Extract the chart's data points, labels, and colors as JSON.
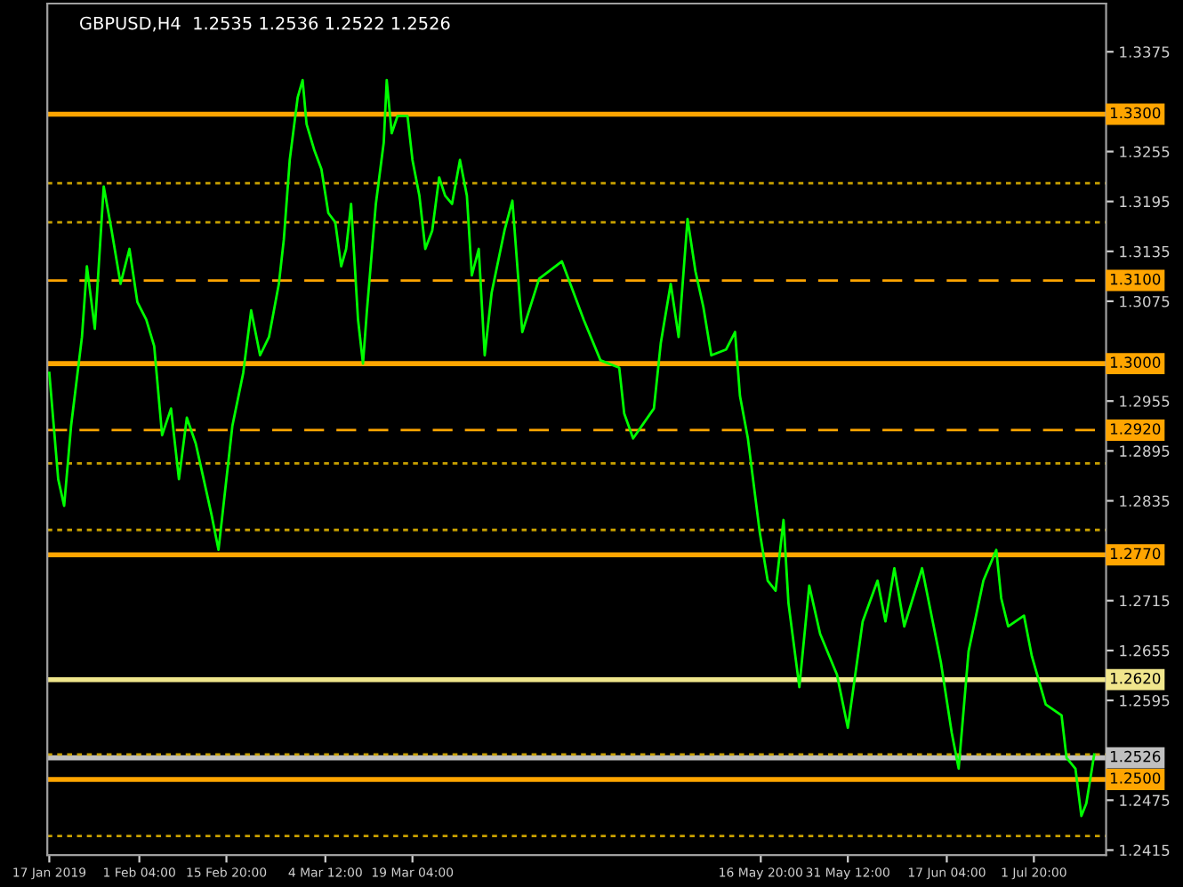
{
  "chart_data": {
    "type": "line",
    "title": "GBPUSD,H4  1.2535 1.2536 1.2522 1.2526",
    "x": [
      "2019-01-17T00:00",
      "2019-01-18T12:00",
      "2019-01-19T12:00",
      "2019-01-20T16:00",
      "2019-01-22T12:00",
      "2019-01-23T08:00",
      "2019-01-24T16:00",
      "2019-01-26T04:00",
      "2019-01-27T12:00",
      "2019-01-29T00:00",
      "2019-01-30T12:00",
      "2019-01-31T20:00",
      "2019-02-02T08:00",
      "2019-02-03T16:00",
      "2019-02-05T00:00",
      "2019-02-06T12:00",
      "2019-02-07T20:00",
      "2019-02-09T04:00",
      "2019-02-10T16:00",
      "2019-02-12T00:00",
      "2019-02-13T08:00",
      "2019-02-14T12:00",
      "2019-02-15T12:00",
      "2019-02-16T20:00",
      "2019-02-18T16:00",
      "2019-02-20T00:00",
      "2019-02-21T12:00",
      "2019-02-23T00:00",
      "2019-02-24T16:00",
      "2019-02-25T12:00",
      "2019-02-26T12:00",
      "2019-02-27T20:00",
      "2019-02-28T16:00",
      "2019-03-01T08:00",
      "2019-03-02T16:00",
      "2019-03-03T20:00",
      "2019-03-05T00:00",
      "2019-03-06T04:00",
      "2019-03-07T04:00",
      "2019-03-08T00:00",
      "2019-03-08T20:00",
      "2019-03-10T00:00",
      "2019-03-10T20:00",
      "2019-03-11T12:00",
      "2019-03-13T00:00",
      "2019-03-14T08:00",
      "2019-03-14T20:00",
      "2019-03-15T16:00",
      "2019-03-16T16:00",
      "2019-03-18T08:00",
      "2019-03-19T04:00",
      "2019-03-20T08:00",
      "2019-03-21T08:00",
      "2019-03-22T12:00",
      "2019-03-23T16:00",
      "2019-03-24T16:00",
      "2019-03-25T20:00",
      "2019-03-27T04:00",
      "2019-03-28T08:00",
      "2019-03-29T04:00",
      "2019-03-30T08:00",
      "2019-03-31T08:00",
      "2019-04-01T12:00",
      "2019-04-03T16:00",
      "2019-04-05T00:00",
      "2019-04-06T16:00",
      "2019-04-09T12:00",
      "2019-04-13T08:00",
      "2019-04-17T00:00",
      "2019-04-19T20:00",
      "2019-04-23T00:00",
      "2019-04-23T20:00",
      "2019-04-25T08:00",
      "2019-04-28T20:00",
      "2019-04-30T00:00",
      "2019-05-01T16:00",
      "2019-05-03T00:00",
      "2019-05-04T12:00",
      "2019-05-05T20:00",
      "2019-05-07T04:00",
      "2019-05-08T12:00",
      "2019-05-11T00:00",
      "2019-05-12T12:00",
      "2019-05-13T08:00",
      "2019-05-14T16:00",
      "2019-05-16T16:00",
      "2019-05-18T00:00",
      "2019-05-19T08:00",
      "2019-05-20T16:00",
      "2019-05-21T12:00",
      "2019-05-23T08:00",
      "2019-05-25T00:00",
      "2019-05-26T20:00",
      "2019-05-29T16:00",
      "2019-05-31T12:00",
      "2019-06-03T00:00",
      "2019-06-05T12:00",
      "2019-06-06T20:00",
      "2019-06-08T08:00",
      "2019-06-10T00:00",
      "2019-06-13T00:00",
      "2019-06-16T04:00",
      "2019-06-18T00:00",
      "2019-06-19T04:00",
      "2019-06-20T20:00",
      "2019-06-23T08:00",
      "2019-06-25T12:00",
      "2019-06-26T08:00",
      "2019-06-27T12:00",
      "2019-06-30T04:00",
      "2019-07-01T12:00",
      "2019-07-03T20:00",
      "2019-07-06T12:00",
      "2019-07-07T08:00",
      "2019-07-08T20:00",
      "2019-07-09T20:00",
      "2019-07-10T16:00",
      "2019-07-12T00:00"
    ],
    "series": [
      {
        "color": "#00ff00",
        "values": [
          1.2989,
          1.2861,
          1.2829,
          1.2925,
          1.3032,
          1.3117,
          1.3042,
          1.3213,
          1.316,
          1.3096,
          1.3138,
          1.3074,
          1.3053,
          1.3021,
          1.2914,
          1.2946,
          1.2861,
          1.2935,
          1.2904,
          1.2861,
          1.2818,
          1.2776,
          1.284,
          1.2925,
          1.2989,
          1.3064,
          1.301,
          1.3032,
          1.3096,
          1.3149,
          1.3245,
          1.332,
          1.3341,
          1.3288,
          1.3256,
          1.3234,
          1.3181,
          1.317,
          1.3117,
          1.3138,
          1.3192,
          1.3053,
          1.3,
          1.3064,
          1.3192,
          1.3266,
          1.3341,
          1.3277,
          1.3298,
          1.3298,
          1.3245,
          1.3202,
          1.3138,
          1.316,
          1.3224,
          1.3202,
          1.3192,
          1.3245,
          1.3202,
          1.3106,
          1.3138,
          1.301,
          1.3085,
          1.316,
          1.3196,
          1.3038,
          1.3102,
          1.3123,
          1.3053,
          1.3004,
          1.2995,
          1.294,
          1.291,
          1.2946,
          1.3025,
          1.3096,
          1.3032,
          1.3174,
          1.3111,
          1.3068,
          1.301,
          1.3017,
          1.3038,
          1.2961,
          1.291,
          1.2797,
          1.2739,
          1.2727,
          1.2812,
          1.2712,
          1.2611,
          1.2733,
          1.2675,
          1.2626,
          1.2562,
          1.269,
          1.2739,
          1.269,
          1.2754,
          1.2684,
          1.2754,
          1.2641,
          1.2556,
          1.2513,
          1.2654,
          1.2739,
          1.2776,
          1.2718,
          1.2684,
          1.2697,
          1.2648,
          1.259,
          1.2577,
          1.2526,
          1.2513,
          1.2456,
          1.2471,
          1.253
        ]
      }
    ],
    "xlim": [
      "2019-01-16T16:00",
      "2019-07-14T00:00"
    ],
    "xticks": [
      {
        "value": "2019-01-17T00:00",
        "label": "17 Jan 2019"
      },
      {
        "value": "2019-02-01T04:00",
        "label": "1 Feb 04:00"
      },
      {
        "value": "2019-02-15T20:00",
        "label": "15 Feb 20:00"
      },
      {
        "value": "2019-03-04T12:00",
        "label": "4 Mar 12:00"
      },
      {
        "value": "2019-03-19T04:00",
        "label": "19 Mar 04:00"
      },
      {
        "value": "2019-05-16T20:00",
        "label": "16 May 20:00"
      },
      {
        "value": "2019-05-31T12:00",
        "label": "31 May 12:00"
      },
      {
        "value": "2019-06-17T04:00",
        "label": "17 Jun 04:00"
      },
      {
        "value": "2019-07-01T20:00",
        "label": "1 Jul 20:00"
      }
    ],
    "ylim": [
      1.2409,
      1.3433
    ],
    "yticks": [
      {
        "value": 1.3375,
        "label": "1.3375"
      },
      {
        "value": 1.3255,
        "label": "1.3255"
      },
      {
        "value": 1.3195,
        "label": "1.3195"
      },
      {
        "value": 1.3135,
        "label": "1.3135"
      },
      {
        "value": 1.3075,
        "label": "1.3075"
      },
      {
        "value": 1.2955,
        "label": "1.2955"
      },
      {
        "value": 1.2895,
        "label": "1.2895"
      },
      {
        "value": 1.2835,
        "label": "1.2835"
      },
      {
        "value": 1.2715,
        "label": "1.2715"
      },
      {
        "value": 1.2655,
        "label": "1.2655"
      },
      {
        "value": 1.2595,
        "label": "1.2595"
      },
      {
        "value": 1.2475,
        "label": "1.2475"
      },
      {
        "value": 1.2415,
        "label": "1.2415"
      }
    ],
    "ref_lines": [
      {
        "axis": "y",
        "value": 1.33,
        "label": "1.3300",
        "color": "#ffa500",
        "line_style": "solid"
      },
      {
        "axis": "y",
        "value": 1.31,
        "label": "1.3100",
        "color": "#ffa500",
        "line_style": "dashed"
      },
      {
        "axis": "y",
        "value": 1.3,
        "label": "1.3000",
        "color": "#ffa500",
        "line_style": "solid"
      },
      {
        "axis": "y",
        "value": 1.292,
        "label": "1.2920",
        "color": "#ffa500",
        "line_style": "dashed"
      },
      {
        "axis": "y",
        "value": 1.277,
        "label": "1.2770",
        "color": "#ffa500",
        "line_style": "solid"
      },
      {
        "axis": "y",
        "value": 1.262,
        "label": "1.2620",
        "color": "#f0e68c",
        "line_style": "solid"
      },
      {
        "axis": "y",
        "value": 1.2526,
        "label": "1.2526",
        "color": "#c0c0c0",
        "line_style": "solid"
      },
      {
        "axis": "y",
        "value": 1.25,
        "label": "1.2500",
        "color": "#ffa500",
        "line_style": "solid"
      },
      {
        "axis": "y",
        "value": 1.3217,
        "color": "#c8a000",
        "line_style": "dotted"
      },
      {
        "axis": "y",
        "value": 1.317,
        "color": "#c8a000",
        "line_style": "dotted"
      },
      {
        "axis": "y",
        "value": 1.288,
        "color": "#c8a000",
        "line_style": "dotted"
      },
      {
        "axis": "y",
        "value": 1.28,
        "color": "#c8a000",
        "line_style": "dotted"
      },
      {
        "axis": "y",
        "value": 1.253,
        "color": "#c8a000",
        "line_style": "dotted"
      },
      {
        "axis": "y",
        "value": 1.2432,
        "color": "#c8a000",
        "line_style": "dotted"
      }
    ],
    "grid": false,
    "legend": false
  }
}
